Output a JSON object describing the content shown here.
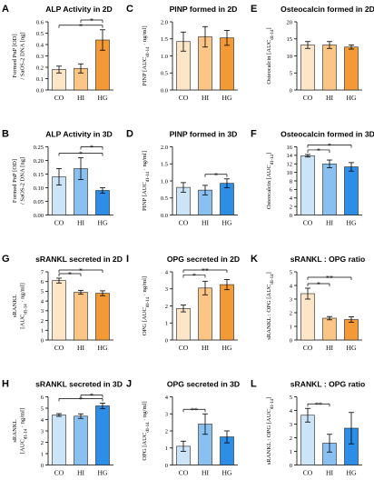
{
  "colors": {
    "2d": [
      "#fde5c8",
      "#fbc586",
      "#f39a37"
    ],
    "3d": [
      "#cce4f8",
      "#89c0f0",
      "#2c8ee6"
    ]
  },
  "chart_data": [
    {
      "id": "A",
      "type": "bar",
      "title": "ALP Activity in 2D",
      "ylabel": [
        "Formed PnP [OD]",
        "/ SaOS-2 DNA [ng]"
      ],
      "categories": [
        "CO",
        "HI",
        "HG"
      ],
      "values": [
        0.18,
        0.19,
        0.44
      ],
      "errors": [
        0.03,
        0.04,
        0.09
      ],
      "ylim": [
        0,
        0.6
      ],
      "yticks": [
        "0.0",
        "0.1",
        "0.2",
        "0.3",
        "0.4",
        "0.5",
        "0.6"
      ],
      "palette": "2d",
      "sig": [
        {
          "from": 0,
          "to": 2,
          "label": "*"
        },
        {
          "from": 1,
          "to": 2,
          "label": "*"
        }
      ]
    },
    {
      "id": "C",
      "type": "bar",
      "title": "PINP formed in 2D",
      "ylabel": [
        "PINP [AUC",
        "d1-14",
        " · ng/ml]"
      ],
      "categories": [
        "CO",
        "HI",
        "HG"
      ],
      "values": [
        1.42,
        1.56,
        1.53
      ],
      "errors": [
        0.28,
        0.3,
        0.22
      ],
      "ylim": [
        0,
        2.0
      ],
      "yticks": [
        "0.0",
        "0.5",
        "1.0",
        "1.5",
        "2.0"
      ],
      "palette": "2d",
      "sig": []
    },
    {
      "id": "E",
      "type": "bar",
      "title": "Osteocalcin formed in 2D",
      "ylabel": [
        "Osteocalcin [AUC",
        "d1-14",
        "]"
      ],
      "categories": [
        "CO",
        "HI",
        "HG"
      ],
      "values": [
        13.2,
        13.2,
        12.6
      ],
      "errors": [
        1.0,
        1.0,
        0.6
      ],
      "ylim": [
        0,
        20
      ],
      "yticks": [
        "0",
        "5",
        "10",
        "15",
        "20"
      ],
      "palette": "2d",
      "sig": []
    },
    {
      "id": "B",
      "type": "bar",
      "title": "ALP Activity in 3D",
      "ylabel": [
        "Formed PnP [OD]",
        "/ SaOS-2 DNA [ng]"
      ],
      "categories": [
        "CO",
        "HI",
        "HG"
      ],
      "values": [
        0.14,
        0.17,
        0.09
      ],
      "errors": [
        0.03,
        0.04,
        0.01
      ],
      "ylim": [
        0,
        0.25
      ],
      "yticks": [
        "0.00",
        "0.05",
        "0.10",
        "0.15",
        "0.20",
        "0.25"
      ],
      "palette": "3d",
      "sig": [
        {
          "from": 0,
          "to": 2,
          "label": "*"
        },
        {
          "from": 1,
          "to": 2,
          "label": "*"
        }
      ]
    },
    {
      "id": "D",
      "type": "bar",
      "title": "PINP formed in 3D",
      "ylabel": [
        "PINP [AUC",
        "d1-14",
        " · ng/ml]"
      ],
      "categories": [
        "CO",
        "HI",
        "HG"
      ],
      "values": [
        0.81,
        0.73,
        0.93
      ],
      "errors": [
        0.14,
        0.14,
        0.13
      ],
      "ylim": [
        0,
        2.0
      ],
      "yticks": [
        "0.0",
        "0.5",
        "1.0",
        "1.5",
        "2.0"
      ],
      "palette": "3d",
      "sig": [
        {
          "from": 1,
          "to": 2,
          "label": "*"
        }
      ]
    },
    {
      "id": "F",
      "type": "bar",
      "title": "Osteocalcin formed in 3D",
      "ylabel": [
        "Osteocalcin [AUC",
        "d1-14",
        "]"
      ],
      "categories": [
        "CO",
        "HI",
        "HG"
      ],
      "values": [
        13.9,
        12.0,
        11.3
      ],
      "errors": [
        0.3,
        0.9,
        1.0
      ],
      "ylim": [
        0,
        16
      ],
      "yticks": [
        "0",
        "2",
        "4",
        "6",
        "8",
        "10",
        "12",
        "14",
        "16"
      ],
      "palette": "3d",
      "sig": [
        {
          "from": 0,
          "to": 1,
          "label": "*"
        },
        {
          "from": 0,
          "to": 2,
          "label": "*"
        }
      ]
    },
    {
      "id": "G",
      "type": "bar",
      "title": "sRANKL secreted in 2D",
      "ylabel": [
        "sRANKL",
        "[AUC",
        "d1-14",
        " · ng/ml]"
      ],
      "categories": [
        "CO",
        "HI",
        "HG"
      ],
      "values": [
        6.1,
        4.9,
        4.8
      ],
      "errors": [
        0.25,
        0.2,
        0.25
      ],
      "ylim": [
        0,
        7
      ],
      "yticks": [
        "0",
        "1",
        "2",
        "3",
        "4",
        "5",
        "6",
        "7"
      ],
      "palette": "2d",
      "sig": [
        {
          "from": 0,
          "to": 1,
          "label": "*"
        },
        {
          "from": 0,
          "to": 2,
          "label": "*"
        }
      ]
    },
    {
      "id": "I",
      "type": "bar",
      "title": "OPG secreted in 2D",
      "ylabel": [
        "OPG [AUC",
        "d1-14",
        " · ng/ml]"
      ],
      "categories": [
        "CO",
        "HI",
        "HG"
      ],
      "values": [
        1.85,
        3.05,
        3.25
      ],
      "errors": [
        0.2,
        0.4,
        0.3
      ],
      "ylim": [
        0,
        4
      ],
      "yticks": [
        "0",
        "1",
        "2",
        "3",
        "4"
      ],
      "palette": "2d",
      "sig": [
        {
          "from": 0,
          "to": 1,
          "label": "*"
        },
        {
          "from": 0,
          "to": 2,
          "label": "**"
        }
      ]
    },
    {
      "id": "K",
      "type": "bar",
      "title": "sRANKL : OPG ratio",
      "ylabel": [
        "sRANKL : OPG [AUC",
        "d1-14",
        "]"
      ],
      "categories": [
        "CO",
        "HI",
        "HG"
      ],
      "values": [
        3.4,
        1.6,
        1.5
      ],
      "errors": [
        0.4,
        0.12,
        0.2
      ],
      "ylim": [
        0,
        5
      ],
      "yticks": [
        "0",
        "1",
        "2",
        "3",
        "4",
        "5"
      ],
      "palette": "2d",
      "sig": [
        {
          "from": 0,
          "to": 1,
          "label": "*"
        },
        {
          "from": 0,
          "to": 2,
          "label": "**"
        }
      ]
    },
    {
      "id": "H",
      "type": "bar",
      "title": "sRANKL secreted in 3D",
      "ylabel": [
        "sRANKL",
        "[AUC",
        "d1-14",
        " · ng/ml]"
      ],
      "categories": [
        "CO",
        "HI",
        "HG"
      ],
      "values": [
        4.4,
        4.3,
        5.2
      ],
      "errors": [
        0.12,
        0.2,
        0.25
      ],
      "ylim": [
        0,
        6
      ],
      "yticks": [
        "0",
        "1",
        "2",
        "3",
        "4",
        "5",
        "6"
      ],
      "palette": "3d",
      "sig": [
        {
          "from": 0,
          "to": 2,
          "label": "*"
        },
        {
          "from": 1,
          "to": 2,
          "label": "*"
        }
      ]
    },
    {
      "id": "J",
      "type": "bar",
      "title": "OPG secreted in 3D",
      "ylabel": [
        "OPG [AUC",
        "d1-14",
        " · ng/ml]"
      ],
      "categories": [
        "CO",
        "HI",
        "HG"
      ],
      "values": [
        1.1,
        2.4,
        1.65
      ],
      "errors": [
        0.3,
        0.6,
        0.35
      ],
      "ylim": [
        0,
        4
      ],
      "yticks": [
        "0",
        "1",
        "2",
        "3",
        "4"
      ],
      "palette": "3d",
      "sig": [
        {
          "from": 0,
          "to": 1,
          "label": "**"
        }
      ]
    },
    {
      "id": "L",
      "type": "bar",
      "title": "sRANKL : OPG ratio",
      "ylabel": [
        "sRANKL : OPG [AUC",
        "d1-14",
        "]"
      ],
      "categories": [
        "CO",
        "HI",
        "HG"
      ],
      "values": [
        3.65,
        1.6,
        2.7
      ],
      "errors": [
        0.5,
        0.65,
        1.15
      ],
      "ylim": [
        0,
        5
      ],
      "yticks": [
        "0",
        "1",
        "2",
        "3",
        "4",
        "5"
      ],
      "palette": "3d",
      "sig": [
        {
          "from": 0,
          "to": 1,
          "label": "**"
        }
      ]
    }
  ]
}
